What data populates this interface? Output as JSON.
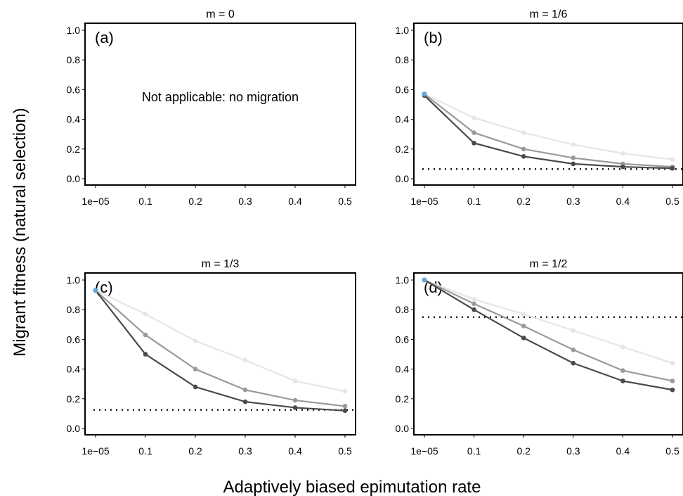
{
  "figure": {
    "ylabel": "Migrant fitness (natural selection)",
    "xlabel": "Adaptively biased epimutation rate"
  },
  "chart_data": [
    {
      "type": "line",
      "title": "m = 0",
      "panel_label": "(a)",
      "note": "Not applicable: no migration",
      "xticks": [
        "1e−05",
        "0.1",
        "0.2",
        "0.3",
        "0.4",
        "0.5"
      ],
      "yticks": [
        "0.0",
        "0.2",
        "0.4",
        "0.6",
        "0.8",
        "1.0"
      ],
      "ylim": [
        0,
        1
      ],
      "series": [],
      "reference_line": null
    },
    {
      "type": "line",
      "title": "m = 1/6",
      "panel_label": "(b)",
      "note": "",
      "xticks": [
        "1e−05",
        "0.1",
        "0.2",
        "0.3",
        "0.4",
        "0.5"
      ],
      "yticks": [
        "0.0",
        "0.2",
        "0.4",
        "0.6",
        "0.8",
        "1.0"
      ],
      "ylim": [
        0,
        1
      ],
      "start_point": {
        "x": "1e−05",
        "y": 0.57,
        "color": "#5fa9dc"
      },
      "series": [
        {
          "color": "#e6e6e6",
          "values": [
            0.57,
            0.41,
            0.31,
            0.23,
            0.17,
            0.13
          ]
        },
        {
          "color": "#9a9a9a",
          "values": [
            0.57,
            0.31,
            0.2,
            0.14,
            0.1,
            0.08
          ]
        },
        {
          "color": "#4a4a4a",
          "values": [
            0.56,
            0.24,
            0.15,
            0.1,
            0.08,
            0.07
          ]
        }
      ],
      "reference_line": 0.065
    },
    {
      "type": "line",
      "title": "m = 1/3",
      "panel_label": "(c)",
      "note": "",
      "xticks": [
        "1e−05",
        "0.1",
        "0.2",
        "0.3",
        "0.4",
        "0.5"
      ],
      "yticks": [
        "0.0",
        "0.2",
        "0.4",
        "0.6",
        "0.8",
        "1.0"
      ],
      "ylim": [
        0,
        1
      ],
      "start_point": {
        "x": "1e−05",
        "y": 0.93,
        "color": "#5fa9dc"
      },
      "series": [
        {
          "color": "#e6e6e6",
          "values": [
            0.93,
            0.77,
            0.59,
            0.46,
            0.32,
            0.25
          ]
        },
        {
          "color": "#9a9a9a",
          "values": [
            0.93,
            0.63,
            0.4,
            0.26,
            0.19,
            0.15
          ]
        },
        {
          "color": "#4a4a4a",
          "values": [
            0.93,
            0.5,
            0.28,
            0.18,
            0.14,
            0.12
          ]
        }
      ],
      "reference_line": 0.125
    },
    {
      "type": "line",
      "title": "m = 1/2",
      "panel_label": "(d)",
      "note": "",
      "xticks": [
        "1e−05",
        "0.1",
        "0.2",
        "0.3",
        "0.4",
        "0.5"
      ],
      "yticks": [
        "0.0",
        "0.2",
        "0.4",
        "0.6",
        "0.8",
        "1.0"
      ],
      "ylim": [
        0,
        1
      ],
      "start_point": {
        "x": "1e−05",
        "y": 1.0,
        "color": "#5fa9dc"
      },
      "series": [
        {
          "color": "#e6e6e6",
          "values": [
            1.0,
            0.87,
            0.77,
            0.66,
            0.55,
            0.44
          ]
        },
        {
          "color": "#9a9a9a",
          "values": [
            1.0,
            0.84,
            0.69,
            0.53,
            0.39,
            0.32
          ]
        },
        {
          "color": "#4a4a4a",
          "values": [
            1.0,
            0.8,
            0.61,
            0.44,
            0.32,
            0.26
          ]
        }
      ],
      "reference_line": 0.75
    }
  ]
}
